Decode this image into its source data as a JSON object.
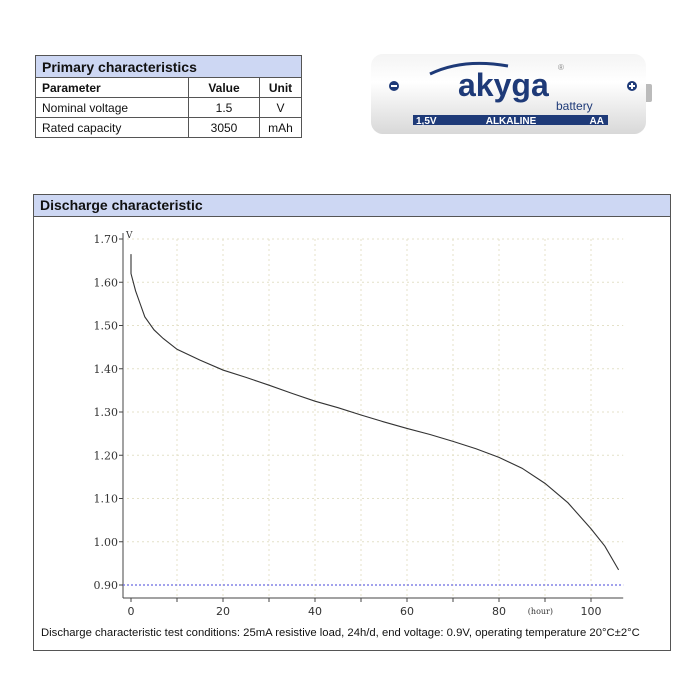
{
  "primary": {
    "title": "Primary characteristics",
    "headers": [
      "Parameter",
      "Value",
      "Unit"
    ],
    "rows": [
      [
        "Nominal voltage",
        "1.5",
        "V"
      ],
      [
        "Rated capacity",
        "3050",
        "mAh"
      ]
    ]
  },
  "battery_image": {
    "brand": "akyga",
    "subbrand": "battery",
    "label_left": "1,5V",
    "label_center": "ALKALINE",
    "label_right": "AA",
    "brand_color": "#1e3a78"
  },
  "discharge": {
    "title": "Discharge characteristic",
    "caption": "Discharge characteristic test conditions: 25mA resistive load, 24h/d, end voltage: 0.9V, operating temperature 20°C±2°C"
  },
  "chart_data": {
    "type": "line",
    "xlabel": "(hour)",
    "ylabel": "V",
    "xlim": [
      0,
      107
    ],
    "ylim": [
      0.87,
      1.7
    ],
    "xticks": [
      "0",
      "20",
      "40",
      "60",
      "80",
      "100"
    ],
    "yticks": [
      "0.90",
      "1.00",
      "1.10",
      "1.20",
      "1.30",
      "1.40",
      "1.50",
      "1.60",
      "1.70"
    ],
    "grid": true,
    "end_voltage_line": 0.9,
    "end_voltage_color": "#6b6be0",
    "line_color": "#333333",
    "series": [
      {
        "x": [
          0,
          0,
          1,
          2,
          3,
          5,
          7,
          10,
          15,
          20,
          25,
          30,
          35,
          40,
          45,
          50,
          55,
          60,
          65,
          70,
          75,
          80,
          85,
          90,
          95,
          100,
          103,
          106
        ],
        "y": [
          1.665,
          1.62,
          1.58,
          1.55,
          1.52,
          1.49,
          1.47,
          1.445,
          1.42,
          1.397,
          1.38,
          1.362,
          1.343,
          1.325,
          1.31,
          1.293,
          1.277,
          1.262,
          1.248,
          1.232,
          1.215,
          1.195,
          1.17,
          1.135,
          1.09,
          1.03,
          0.99,
          0.935
        ]
      }
    ]
  }
}
